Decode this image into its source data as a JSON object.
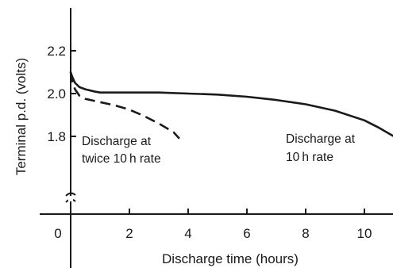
{
  "chart_data": {
    "type": "line",
    "title": "",
    "xlabel": "Discharge time (hours)",
    "ylabel": "Terminal p.d. (volts)",
    "xlim": [
      0,
      11
    ],
    "ylim": [
      1.6,
      2.4
    ],
    "y_axis_break": true,
    "grid": false,
    "x_ticks": [
      {
        "value": 0,
        "label": "0"
      },
      {
        "value": 2,
        "label": "2"
      },
      {
        "value": 4,
        "label": "4"
      },
      {
        "value": 6,
        "label": "6"
      },
      {
        "value": 8,
        "label": "8"
      },
      {
        "value": 10,
        "label": "10"
      }
    ],
    "y_ticks": [
      {
        "value": 1.8,
        "label": "1.8"
      },
      {
        "value": 2.0,
        "label": "2.0"
      },
      {
        "value": 2.2,
        "label": "2.2"
      }
    ],
    "series": [
      {
        "style": "solid",
        "x": [
          0,
          0.05,
          0.15,
          0.3,
          0.5,
          0.8,
          1.0,
          1.5,
          2,
          3,
          4,
          5,
          6,
          7,
          8,
          9,
          10,
          10.5,
          11
        ],
        "y": [
          2.1,
          2.08,
          2.05,
          2.03,
          2.02,
          2.01,
          2.005,
          2.005,
          2.005,
          2.005,
          2.0,
          1.995,
          1.985,
          1.97,
          1.95,
          1.92,
          1.875,
          1.84,
          1.8
        ]
      },
      {
        "style": "dashed",
        "x": [
          0,
          0.05,
          0.15,
          0.3,
          0.5,
          1.0,
          1.5,
          2.0,
          2.5,
          3.0,
          3.5,
          3.7
        ],
        "y": [
          2.1,
          2.06,
          2.02,
          1.99,
          1.975,
          1.96,
          1.945,
          1.925,
          1.895,
          1.86,
          1.82,
          1.79
        ]
      }
    ],
    "annotations": [
      {
        "lines": [
          "Discharge at",
          "twice 10 h rate"
        ]
      },
      {
        "lines": [
          "Discharge at",
          "10 h rate"
        ]
      }
    ]
  }
}
